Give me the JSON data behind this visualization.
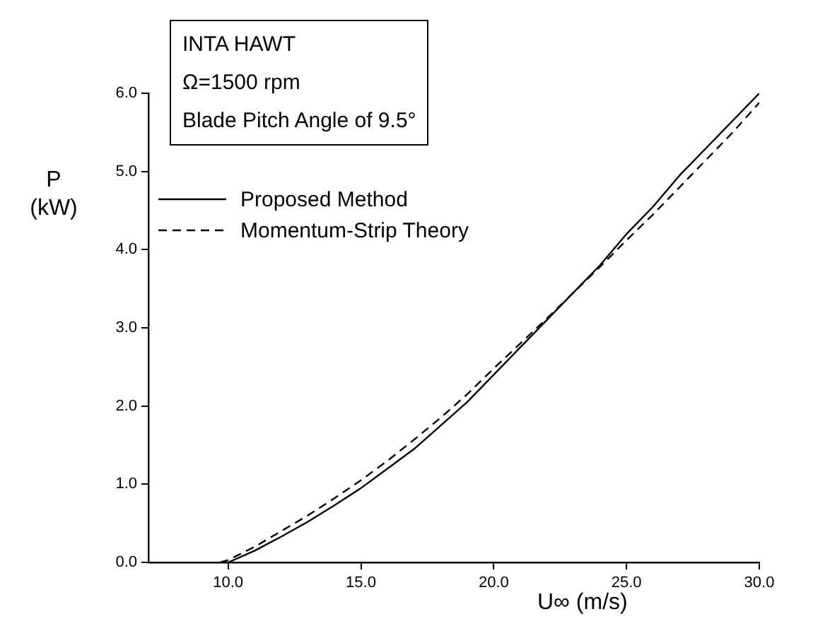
{
  "chart_data": {
    "type": "line",
    "xlabel": "U∞ (m/s)",
    "ylabel": "P (kW)",
    "annotations": [
      "INTA HAWT",
      "Ω=1500 rpm",
      "Blade Pitch Angle of 9.5°"
    ],
    "xlim": [
      7,
      30
    ],
    "ylim": [
      0,
      6
    ],
    "xticks": [
      {
        "value": 10,
        "label": "10.0"
      },
      {
        "value": 15,
        "label": "15.0"
      },
      {
        "value": 20,
        "label": "20.0"
      },
      {
        "value": 25,
        "label": "25.0"
      },
      {
        "value": 30,
        "label": "30.0"
      }
    ],
    "yticks": [
      {
        "value": 0,
        "label": "0.0"
      },
      {
        "value": 1,
        "label": "1.0"
      },
      {
        "value": 2,
        "label": "2.0"
      },
      {
        "value": 3,
        "label": "3.0"
      },
      {
        "value": 4,
        "label": "4.0"
      },
      {
        "value": 5,
        "label": "5.0"
      },
      {
        "value": 6,
        "label": "6.0"
      }
    ],
    "grid": false,
    "legend": "top left",
    "marker": "none",
    "series": [
      {
        "name": "Proposed Method",
        "color": "#000000",
        "line_style": "solid",
        "x": [
          10,
          11,
          12,
          13,
          14,
          15,
          16,
          17,
          18,
          19,
          20,
          21,
          22,
          23,
          24,
          25,
          26,
          27,
          28,
          29,
          30
        ],
        "values": [
          0,
          0.15,
          0.33,
          0.52,
          0.73,
          0.95,
          1.2,
          1.45,
          1.75,
          2.05,
          2.4,
          2.75,
          3.1,
          3.45,
          3.8,
          4.2,
          4.55,
          4.95,
          5.3,
          5.65,
          6.0
        ]
      },
      {
        "name": "Momentum-Strip Theory",
        "color": "#000000",
        "line_style": "dashed",
        "x": [
          9.7,
          10,
          11,
          12,
          13,
          14,
          15,
          16,
          17,
          18,
          19,
          20,
          21,
          22,
          23,
          24,
          25,
          26,
          27,
          28,
          29,
          30
        ],
        "values": [
          0,
          0.03,
          0.2,
          0.4,
          0.6,
          0.82,
          1.05,
          1.3,
          1.57,
          1.85,
          2.15,
          2.48,
          2.8,
          3.12,
          3.45,
          3.78,
          4.12,
          4.45,
          4.8,
          5.15,
          5.5,
          5.88
        ]
      }
    ]
  }
}
